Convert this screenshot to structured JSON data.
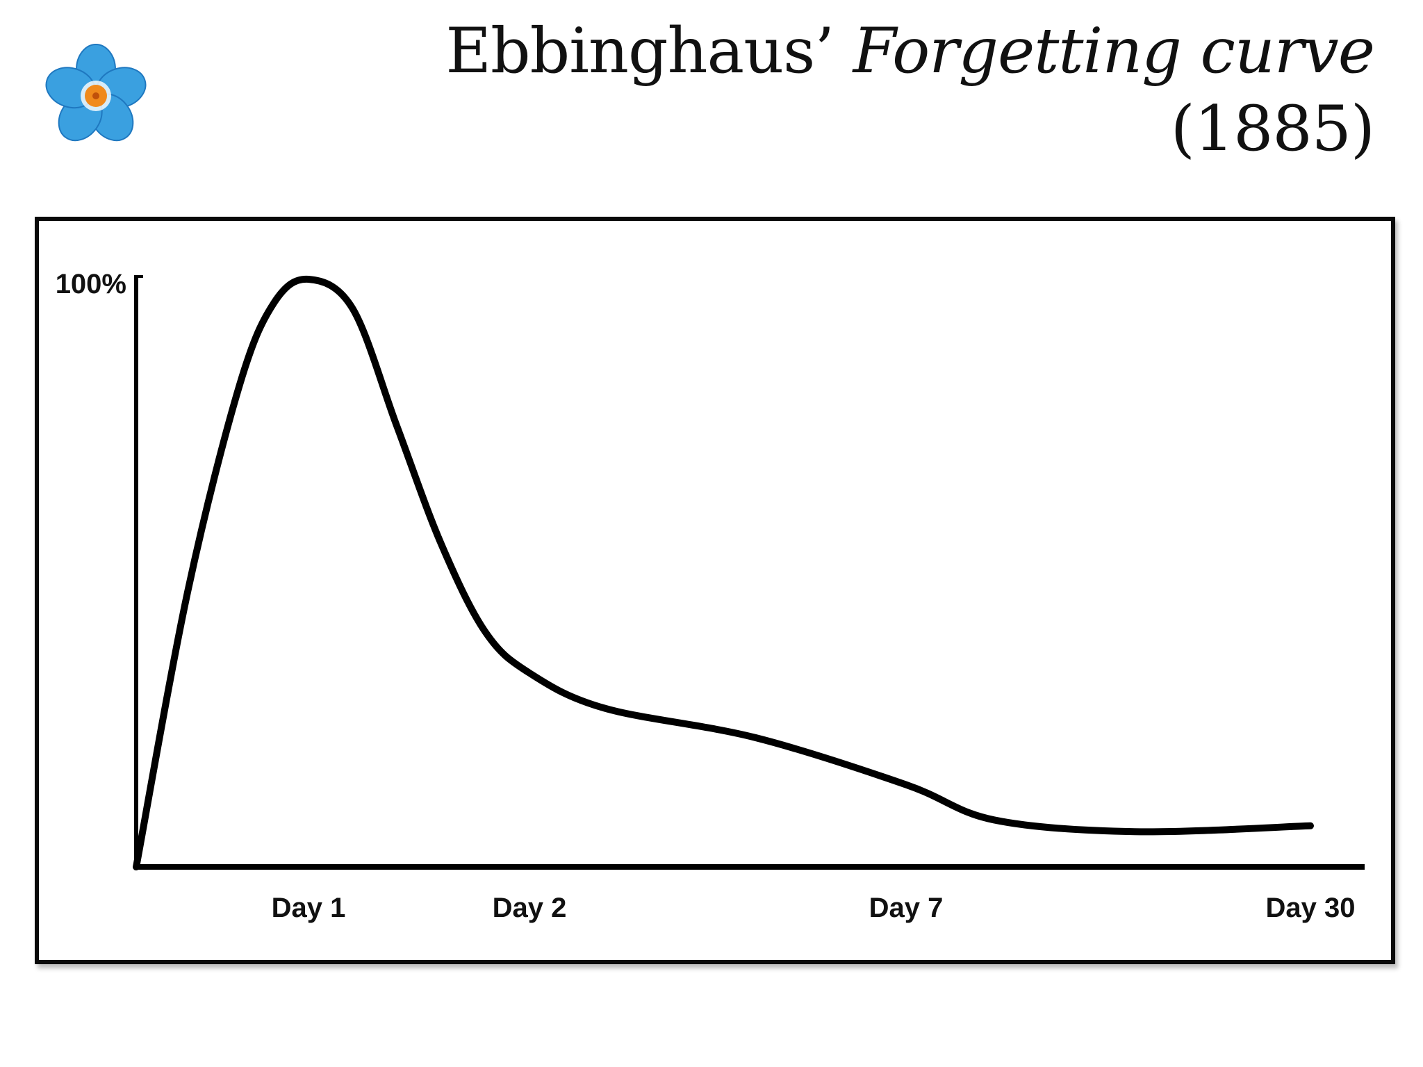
{
  "slide": {
    "title_main": "Ebbinghaus’ ",
    "title_italic": "Forgetting curve",
    "title_year": "(1885)",
    "logo_icon": "forget-me-not-flower-icon"
  },
  "colors": {
    "petal": "#3aa0e0",
    "petal_dark": "#1f78c0",
    "flower_center": "#f08a1c",
    "curve": "#000000",
    "axis": "#000000"
  },
  "chart_data": {
    "type": "line",
    "title": "",
    "xlabel": "",
    "ylabel": "",
    "y_top_label": "100%",
    "ylim": [
      0,
      100
    ],
    "x_ticks": [
      {
        "label": "Day 1",
        "value": 1
      },
      {
        "label": "Day 2",
        "value": 2
      },
      {
        "label": "Day 7",
        "value": 7
      },
      {
        "label": "Day 30",
        "value": 30
      }
    ],
    "grid": false,
    "legend": "none",
    "series": [
      {
        "points": [
          {
            "x": 0,
            "y": 0
          },
          {
            "x": 0.3,
            "y": 47
          },
          {
            "x": 0.6,
            "y": 82
          },
          {
            "x": 0.8,
            "y": 96
          },
          {
            "x": 1,
            "y": 100
          },
          {
            "x": 1.2,
            "y": 95
          },
          {
            "x": 1.4,
            "y": 75
          },
          {
            "x": 1.6,
            "y": 55
          },
          {
            "x": 1.8,
            "y": 40
          },
          {
            "x": 2,
            "y": 33
          },
          {
            "x": 3,
            "y": 27
          },
          {
            "x": 5,
            "y": 22
          },
          {
            "x": 7,
            "y": 14
          },
          {
            "x": 12,
            "y": 8
          },
          {
            "x": 20,
            "y": 6
          },
          {
            "x": 30,
            "y": 7
          }
        ]
      }
    ]
  }
}
